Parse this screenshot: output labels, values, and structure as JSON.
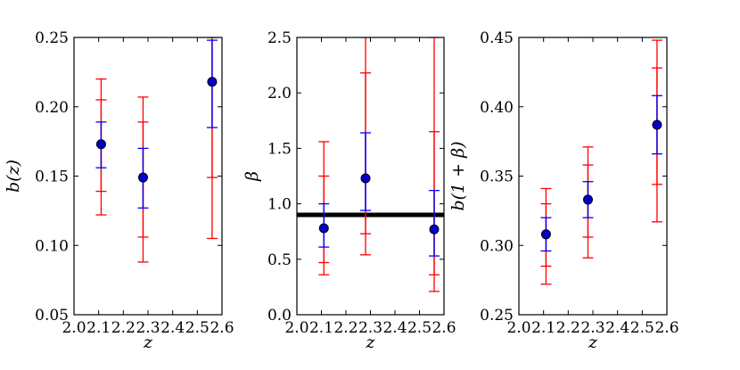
{
  "chart_data": [
    {
      "type": "scatter",
      "xlabel": "z",
      "ylabel": "b(z)",
      "xlim": [
        2.0,
        2.6
      ],
      "ylim": [
        0.05,
        0.25
      ],
      "xticks": [
        "2.0",
        "2.1",
        "2.2",
        "2.3",
        "2.4",
        "2.5",
        "2.6"
      ],
      "yticks": [
        "0.05",
        "0.10",
        "0.15",
        "0.20",
        "0.25"
      ],
      "xtick_values": [
        2.0,
        2.1,
        2.2,
        2.3,
        2.4,
        2.5,
        2.6
      ],
      "ytick_values": [
        0.05,
        0.1,
        0.15,
        0.2,
        0.25
      ],
      "points": [
        {
          "x": 2.11,
          "y": 0.173,
          "blue": [
            0.156,
            0.189
          ],
          "red_inner": [
            0.139,
            0.205
          ],
          "red_outer": [
            0.122,
            0.22
          ]
        },
        {
          "x": 2.28,
          "y": 0.149,
          "blue": [
            0.127,
            0.17
          ],
          "red_inner": [
            0.106,
            0.189
          ],
          "red_outer": [
            0.088,
            0.207
          ]
        },
        {
          "x": 2.56,
          "y": 0.218,
          "blue": [
            0.185,
            0.248
          ],
          "red_inner": [
            0.149,
            0.25
          ],
          "red_outer": [
            0.105,
            0.25
          ]
        }
      ]
    },
    {
      "type": "scatter",
      "xlabel": "z",
      "ylabel": "β",
      "xlim": [
        2.0,
        2.6
      ],
      "ylim": [
        0.0,
        2.5
      ],
      "xticks": [
        "2.0",
        "2.1",
        "2.2",
        "2.3",
        "2.4",
        "2.5",
        "2.6"
      ],
      "yticks": [
        "0.0",
        "0.5",
        "1.0",
        "1.5",
        "2.0",
        "2.5"
      ],
      "xtick_values": [
        2.0,
        2.1,
        2.2,
        2.3,
        2.4,
        2.5,
        2.6
      ],
      "ytick_values": [
        0.0,
        0.5,
        1.0,
        1.5,
        2.0,
        2.5
      ],
      "hline": 0.9,
      "points": [
        {
          "x": 2.11,
          "y": 0.78,
          "blue": [
            0.61,
            1.0
          ],
          "red_inner": [
            0.47,
            1.25
          ],
          "red_outer": [
            0.36,
            1.56
          ]
        },
        {
          "x": 2.28,
          "y": 1.23,
          "blue": [
            0.94,
            1.64
          ],
          "red_inner": [
            0.73,
            2.18
          ],
          "red_outer": [
            0.54,
            2.5
          ]
        },
        {
          "x": 2.56,
          "y": 0.77,
          "blue": [
            0.53,
            1.12
          ],
          "red_inner": [
            0.36,
            1.65
          ],
          "red_outer": [
            0.21,
            2.5
          ]
        }
      ]
    },
    {
      "type": "scatter",
      "xlabel": "z",
      "ylabel": "b(1 + β)",
      "xlim": [
        2.0,
        2.6
      ],
      "ylim": [
        0.25,
        0.45
      ],
      "xticks": [
        "2.0",
        "2.1",
        "2.2",
        "2.3",
        "2.4",
        "2.5",
        "2.6"
      ],
      "yticks": [
        "0.25",
        "0.30",
        "0.35",
        "0.40",
        "0.45"
      ],
      "xtick_values": [
        2.0,
        2.1,
        2.2,
        2.3,
        2.4,
        2.5,
        2.6
      ],
      "ytick_values": [
        0.25,
        0.3,
        0.35,
        0.4,
        0.45
      ],
      "points": [
        {
          "x": 2.11,
          "y": 0.308,
          "blue": [
            0.296,
            0.32
          ],
          "red_inner": [
            0.285,
            0.33
          ],
          "red_outer": [
            0.272,
            0.341
          ]
        },
        {
          "x": 2.28,
          "y": 0.333,
          "blue": [
            0.32,
            0.346
          ],
          "red_inner": [
            0.306,
            0.358
          ],
          "red_outer": [
            0.291,
            0.371
          ]
        },
        {
          "x": 2.56,
          "y": 0.387,
          "blue": [
            0.366,
            0.408
          ],
          "red_inner": [
            0.344,
            0.428
          ],
          "red_outer": [
            0.317,
            0.448
          ]
        }
      ]
    }
  ],
  "colors": {
    "marker": "#0000cc",
    "blue_errorbar": "#0000ff",
    "red_errorbar": "#ff0000",
    "hline": "#000000"
  }
}
